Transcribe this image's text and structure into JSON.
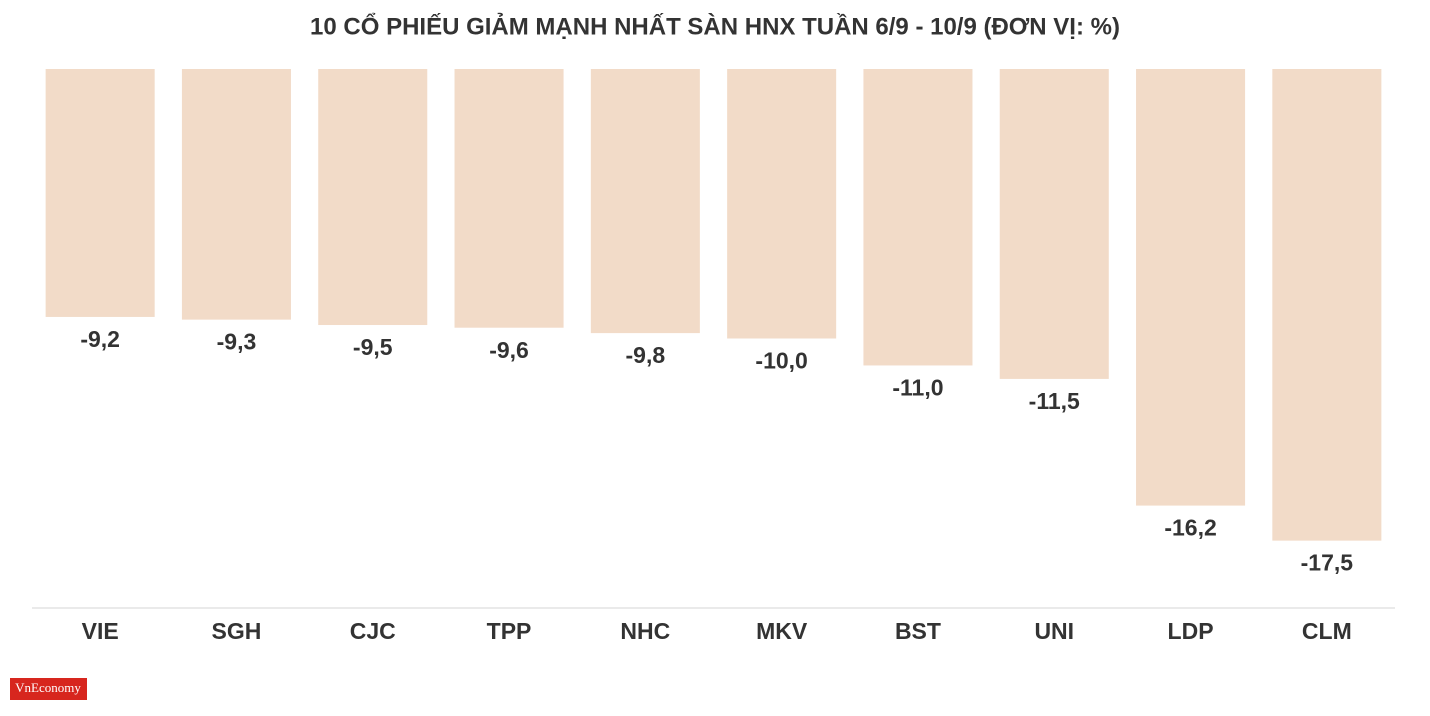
{
  "chart_data": {
    "type": "bar",
    "title": "10 CỔ PHIẾU GIẢM MẠNH NHẤT SÀN HNX TUẦN 6/9 - 10/9 (ĐƠN VỊ: %)",
    "categories": [
      "VIE",
      "SGH",
      "CJC",
      "TPP",
      "NHC",
      "MKV",
      "BST",
      "UNI",
      "LDP",
      "CLM"
    ],
    "values": [
      -9.2,
      -9.3,
      -9.5,
      -9.6,
      -9.8,
      -10.0,
      -11.0,
      -11.5,
      -16.2,
      -17.5
    ],
    "value_labels": [
      "-9,2",
      "-9,3",
      "-9,5",
      "-9,6",
      "-9,8",
      "-10,0",
      "-11,0",
      "-11,5",
      "-16,2",
      "-17,5"
    ],
    "color": "#f2dbc8",
    "ylim": [
      -20,
      0
    ],
    "grid": false
  },
  "logo": "VnEconomy"
}
